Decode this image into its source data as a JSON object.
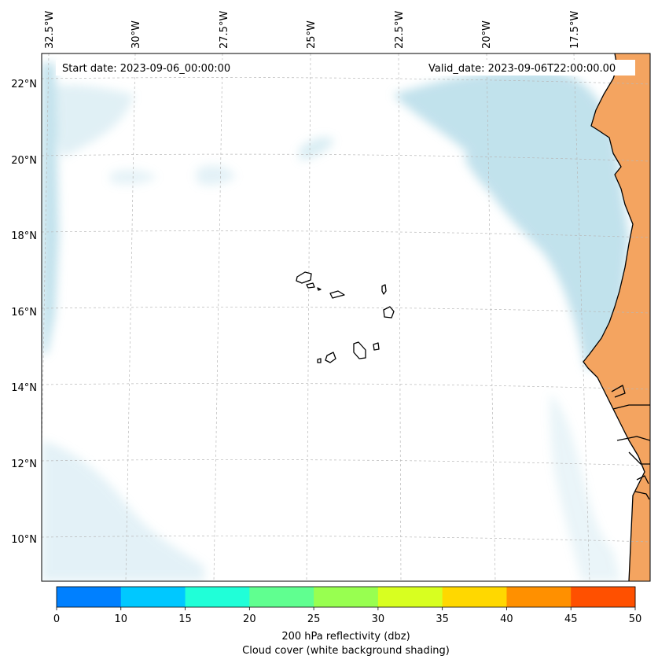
{
  "map": {
    "start_date": "Start date: 2023-09-06_00:00:00",
    "valid_date": "Valid_date: 2023-09-06T22:00:00.00",
    "lon_labels": [
      "32.5°W",
      "30°W",
      "27.5°W",
      "25°W",
      "22.5°W",
      "20°W",
      "17.5°W"
    ],
    "lat_labels": [
      "22°N",
      "20°N",
      "18°N",
      "16°N",
      "14°N",
      "12°N",
      "10°N"
    ],
    "land_color": "#f4a460",
    "cloud_color": "#add8e6"
  },
  "colorbar": {
    "ticks": [
      "0",
      "10",
      "15",
      "20",
      "25",
      "30",
      "35",
      "40",
      "45",
      "50"
    ],
    "colors": [
      "#0080ff",
      "#00c8ff",
      "#20ffd8",
      "#60ff90",
      "#98ff50",
      "#d8ff20",
      "#ffd800",
      "#ff9000",
      "#ff5000"
    ],
    "label_line1": "200 hPa reflectivity (dbz)",
    "label_line2": "Cloud cover (white background shading)"
  }
}
